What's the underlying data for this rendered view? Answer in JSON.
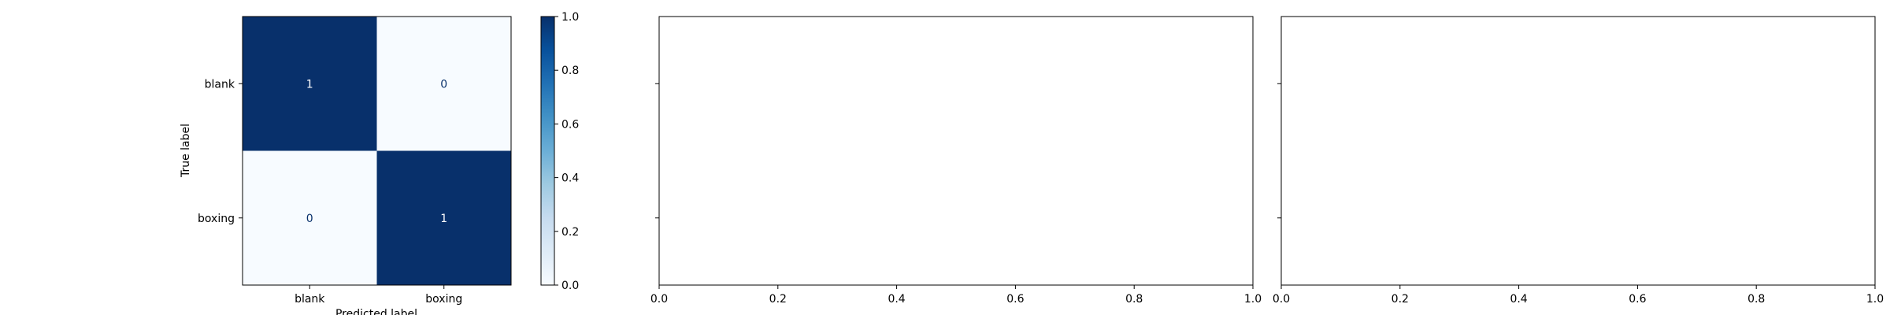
{
  "chart_data": [
    {
      "type": "heatmap",
      "title": "",
      "xlabel": "Predicted label",
      "ylabel": "True label",
      "x_categories": [
        "blank",
        "boxing"
      ],
      "y_categories": [
        "blank",
        "boxing"
      ],
      "values": [
        [
          1,
          0
        ],
        [
          0,
          1
        ]
      ],
      "colormap": "Blues",
      "cell_text_colors": {
        "high": "#ffffff",
        "low": "#08306b"
      },
      "colorbar": {
        "range": [
          0.0,
          1.0
        ],
        "ticks": [
          0.0,
          0.2,
          0.4,
          0.6,
          0.8,
          1.0
        ],
        "tick_labels": [
          "0.0",
          "0.2",
          "0.4",
          "0.6",
          "0.8",
          "1.0"
        ]
      }
    },
    {
      "type": "line",
      "title": "",
      "series": [],
      "xlim": [
        0.0,
        1.0
      ],
      "x_ticks": [
        0.0,
        0.2,
        0.4,
        0.6,
        0.8,
        1.0
      ],
      "x_tick_labels": [
        "0.0",
        "0.2",
        "0.4",
        "0.6",
        "0.8",
        "1.0"
      ],
      "y_ticks_labeled": false
    },
    {
      "type": "line",
      "title": "",
      "series": [],
      "xlim": [
        0.0,
        1.0
      ],
      "x_ticks": [
        0.0,
        0.2,
        0.4,
        0.6,
        0.8,
        1.0
      ],
      "x_tick_labels": [
        "0.0",
        "0.2",
        "0.4",
        "0.6",
        "0.8",
        "1.0"
      ],
      "y_ticks_labeled": false
    }
  ]
}
